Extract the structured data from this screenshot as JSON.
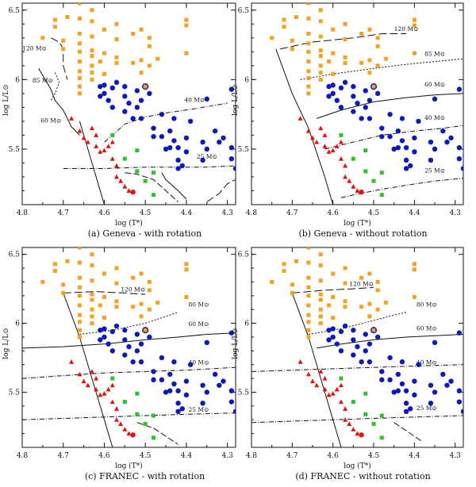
{
  "chart_data": [
    {
      "type": "scatter",
      "caption": "(a)  Geneva - with rotation",
      "xlabel": "log (T*)",
      "ylabel": "log L/L⊙",
      "xlim": [
        4.8,
        4.28
      ],
      "ylim": [
        5.1,
        6.55
      ],
      "x_ticks": [
        "4.8",
        "4.7",
        "4.6",
        "4.5",
        "4.4",
        "4.3"
      ],
      "y_ticks": [
        "5.5",
        "6",
        "6.5"
      ],
      "track_labels": [
        {
          "text": "120 M⊙",
          "x": 4.77,
          "y": 6.21
        },
        {
          "text": "85 M⊙",
          "x": 4.75,
          "y": 5.98
        },
        {
          "text": "60 M⊙",
          "x": 4.73,
          "y": 5.69
        },
        {
          "text": "40 M⊙",
          "x": 4.38,
          "y": 5.84
        },
        {
          "text": "25 M⊙",
          "x": 4.35,
          "y": 5.43
        }
      ]
    },
    {
      "type": "scatter",
      "caption": "(b)  Geneva - without rotation",
      "xlabel": "log (T*)",
      "ylabel": "log L/L⊙",
      "xlim": [
        4.8,
        4.28
      ],
      "ylim": [
        5.1,
        6.55
      ],
      "x_ticks": [
        "4.8",
        "4.7",
        "4.6",
        "4.5",
        "4.4",
        "4.3"
      ],
      "y_ticks": [
        "5.5",
        "6",
        "6.5"
      ],
      "track_labels": [
        {
          "text": "120 M⊙",
          "x": 4.42,
          "y": 6.35
        },
        {
          "text": "85 M⊙",
          "x": 4.35,
          "y": 6.17
        },
        {
          "text": "60 M⊙",
          "x": 4.35,
          "y": 5.95
        },
        {
          "text": "40 M⊙",
          "x": 4.35,
          "y": 5.71
        },
        {
          "text": "25 M⊙",
          "x": 4.35,
          "y": 5.33
        }
      ]
    },
    {
      "type": "scatter",
      "caption": "(c)  FRANEC - with rotation",
      "xlabel": "log (T*)",
      "ylabel": "log L/L⊙",
      "xlim": [
        4.8,
        4.28
      ],
      "ylim": [
        5.1,
        6.55
      ],
      "x_ticks": [
        "4.8",
        "4.7",
        "4.6",
        "4.5",
        "4.4",
        "4.3"
      ],
      "y_ticks": [
        "5.5",
        "6",
        "6.5"
      ],
      "track_labels": [
        {
          "text": "120 M⊙",
          "x": 4.53,
          "y": 6.23
        },
        {
          "text": "80 M⊙",
          "x": 4.37,
          "y": 6.12
        },
        {
          "text": "60 M⊙",
          "x": 4.37,
          "y": 5.98
        },
        {
          "text": "40 M⊙",
          "x": 4.37,
          "y": 5.7
        },
        {
          "text": "25 M⊙",
          "x": 4.37,
          "y": 5.36
        }
      ]
    },
    {
      "type": "scatter",
      "caption": "(d)  FRANEC - without rotation",
      "xlabel": "log (T*)",
      "ylabel": "log L/L⊙",
      "xlim": [
        4.8,
        4.28
      ],
      "ylim": [
        5.1,
        6.55
      ],
      "x_ticks": [
        "4.8",
        "4.7",
        "4.6",
        "4.5",
        "4.4",
        "4.3"
      ],
      "y_ticks": [
        "5.5",
        "6",
        "6.5"
      ],
      "track_labels": [
        {
          "text": "120 M⊙",
          "x": 4.53,
          "y": 6.27
        },
        {
          "text": "80 M⊙",
          "x": 4.37,
          "y": 6.12
        },
        {
          "text": "60 M⊙",
          "x": 4.37,
          "y": 5.95
        },
        {
          "text": "40 M⊙",
          "x": 4.37,
          "y": 5.7
        },
        {
          "text": "25 M⊙",
          "x": 4.37,
          "y": 5.37
        }
      ]
    }
  ],
  "stars": {
    "orange_squares": [
      [
        4.75,
        6.3
      ],
      [
        4.72,
        6.38
      ],
      [
        4.72,
        6.43
      ],
      [
        4.7,
        6.22
      ],
      [
        4.7,
        6.28
      ],
      [
        4.69,
        6.45
      ],
      [
        4.66,
        6.55
      ],
      [
        4.66,
        6.44
      ],
      [
        4.66,
        6.33
      ],
      [
        4.66,
        6.26
      ],
      [
        4.66,
        6.2
      ],
      [
        4.66,
        6.13
      ],
      [
        4.66,
        6.06
      ],
      [
        4.66,
        6.01
      ],
      [
        4.66,
        5.95
      ],
      [
        4.66,
        5.9
      ],
      [
        4.63,
        6.5
      ],
      [
        4.63,
        6.42
      ],
      [
        4.63,
        6.31
      ],
      [
        4.63,
        6.21
      ],
      [
        4.63,
        6.17
      ],
      [
        4.63,
        6.1
      ],
      [
        4.63,
        6.05
      ],
      [
        4.63,
        6.0
      ],
      [
        4.61,
        6.13
      ],
      [
        4.6,
        6.36
      ],
      [
        4.6,
        6.19
      ],
      [
        4.6,
        6.04
      ],
      [
        4.57,
        6.4
      ],
      [
        4.57,
        6.29
      ],
      [
        4.57,
        6.16
      ],
      [
        4.57,
        6.12
      ],
      [
        4.53,
        6.33
      ],
      [
        4.53,
        6.12
      ],
      [
        4.51,
        6.36
      ],
      [
        4.51,
        6.14
      ],
      [
        4.51,
        6.05
      ],
      [
        4.49,
        6.3
      ],
      [
        4.49,
        6.24
      ],
      [
        4.49,
        6.1
      ],
      [
        4.47,
        6.15
      ],
      [
        4.4,
        6.43
      ],
      [
        4.4,
        6.39
      ],
      [
        4.4,
        6.19
      ]
    ],
    "blue_circles": [
      [
        4.61,
        5.95
      ],
      [
        4.61,
        5.88
      ],
      [
        4.6,
        5.9
      ],
      [
        4.6,
        5.96
      ],
      [
        4.59,
        5.85
      ],
      [
        4.58,
        5.94
      ],
      [
        4.58,
        5.8
      ],
      [
        4.57,
        5.98
      ],
      [
        4.55,
        5.95
      ],
      [
        4.55,
        5.88
      ],
      [
        4.55,
        5.77
      ],
      [
        4.54,
        5.83
      ],
      [
        4.52,
        5.92
      ],
      [
        4.52,
        5.8
      ],
      [
        4.51,
        5.85
      ],
      [
        4.51,
        5.72
      ],
      [
        4.5,
        5.95
      ],
      [
        4.49,
        5.9
      ],
      [
        4.48,
        5.65
      ],
      [
        4.48,
        5.59
      ],
      [
        4.46,
        5.75
      ],
      [
        4.46,
        5.59
      ],
      [
        4.45,
        5.5
      ],
      [
        4.44,
        5.51
      ],
      [
        4.44,
        5.63
      ],
      [
        4.43,
        5.72
      ],
      [
        4.43,
        5.56
      ],
      [
        4.42,
        5.51
      ],
      [
        4.42,
        5.42
      ],
      [
        4.42,
        5.36
      ],
      [
        4.41,
        5.38
      ],
      [
        4.4,
        5.58
      ],
      [
        4.4,
        5.48
      ],
      [
        4.39,
        5.7
      ],
      [
        4.36,
        5.55
      ],
      [
        4.36,
        5.42
      ],
      [
        4.35,
        5.5
      ],
      [
        4.35,
        5.86
      ],
      [
        4.33,
        5.63
      ],
      [
        4.32,
        5.55
      ],
      [
        4.31,
        5.58
      ],
      [
        4.29,
        5.93
      ],
      [
        4.29,
        5.51
      ],
      [
        4.29,
        5.43
      ],
      [
        4.28,
        5.36
      ],
      [
        4.53,
        5.72
      ]
    ],
    "red_triangles": [
      [
        4.68,
        5.72
      ],
      [
        4.66,
        5.63
      ],
      [
        4.65,
        5.58
      ],
      [
        4.64,
        5.55
      ],
      [
        4.63,
        5.65
      ],
      [
        4.62,
        5.52
      ],
      [
        4.62,
        5.6
      ],
      [
        4.61,
        5.48
      ],
      [
        4.6,
        5.49
      ],
      [
        4.59,
        5.52
      ],
      [
        4.58,
        5.55
      ],
      [
        4.58,
        5.43
      ],
      [
        4.57,
        5.38
      ],
      [
        4.57,
        5.3
      ],
      [
        4.56,
        5.27
      ],
      [
        4.55,
        5.23
      ],
      [
        4.54,
        5.2
      ]
    ],
    "green_squares": [
      [
        4.58,
        5.6
      ],
      [
        4.55,
        5.43
      ],
      [
        4.52,
        5.49
      ],
      [
        4.52,
        5.34
      ],
      [
        4.5,
        5.27
      ],
      [
        4.48,
        5.33
      ],
      [
        4.48,
        5.17
      ]
    ],
    "red_circle": [
      [
        4.53,
        5.19
      ]
    ],
    "orange_circle": [
      [
        4.5,
        5.95
      ]
    ]
  },
  "colors": {
    "orange": "#f5a021",
    "blue": "#0d1ab8",
    "red": "#e41010",
    "green": "#2ec02e",
    "line": "#111111"
  }
}
